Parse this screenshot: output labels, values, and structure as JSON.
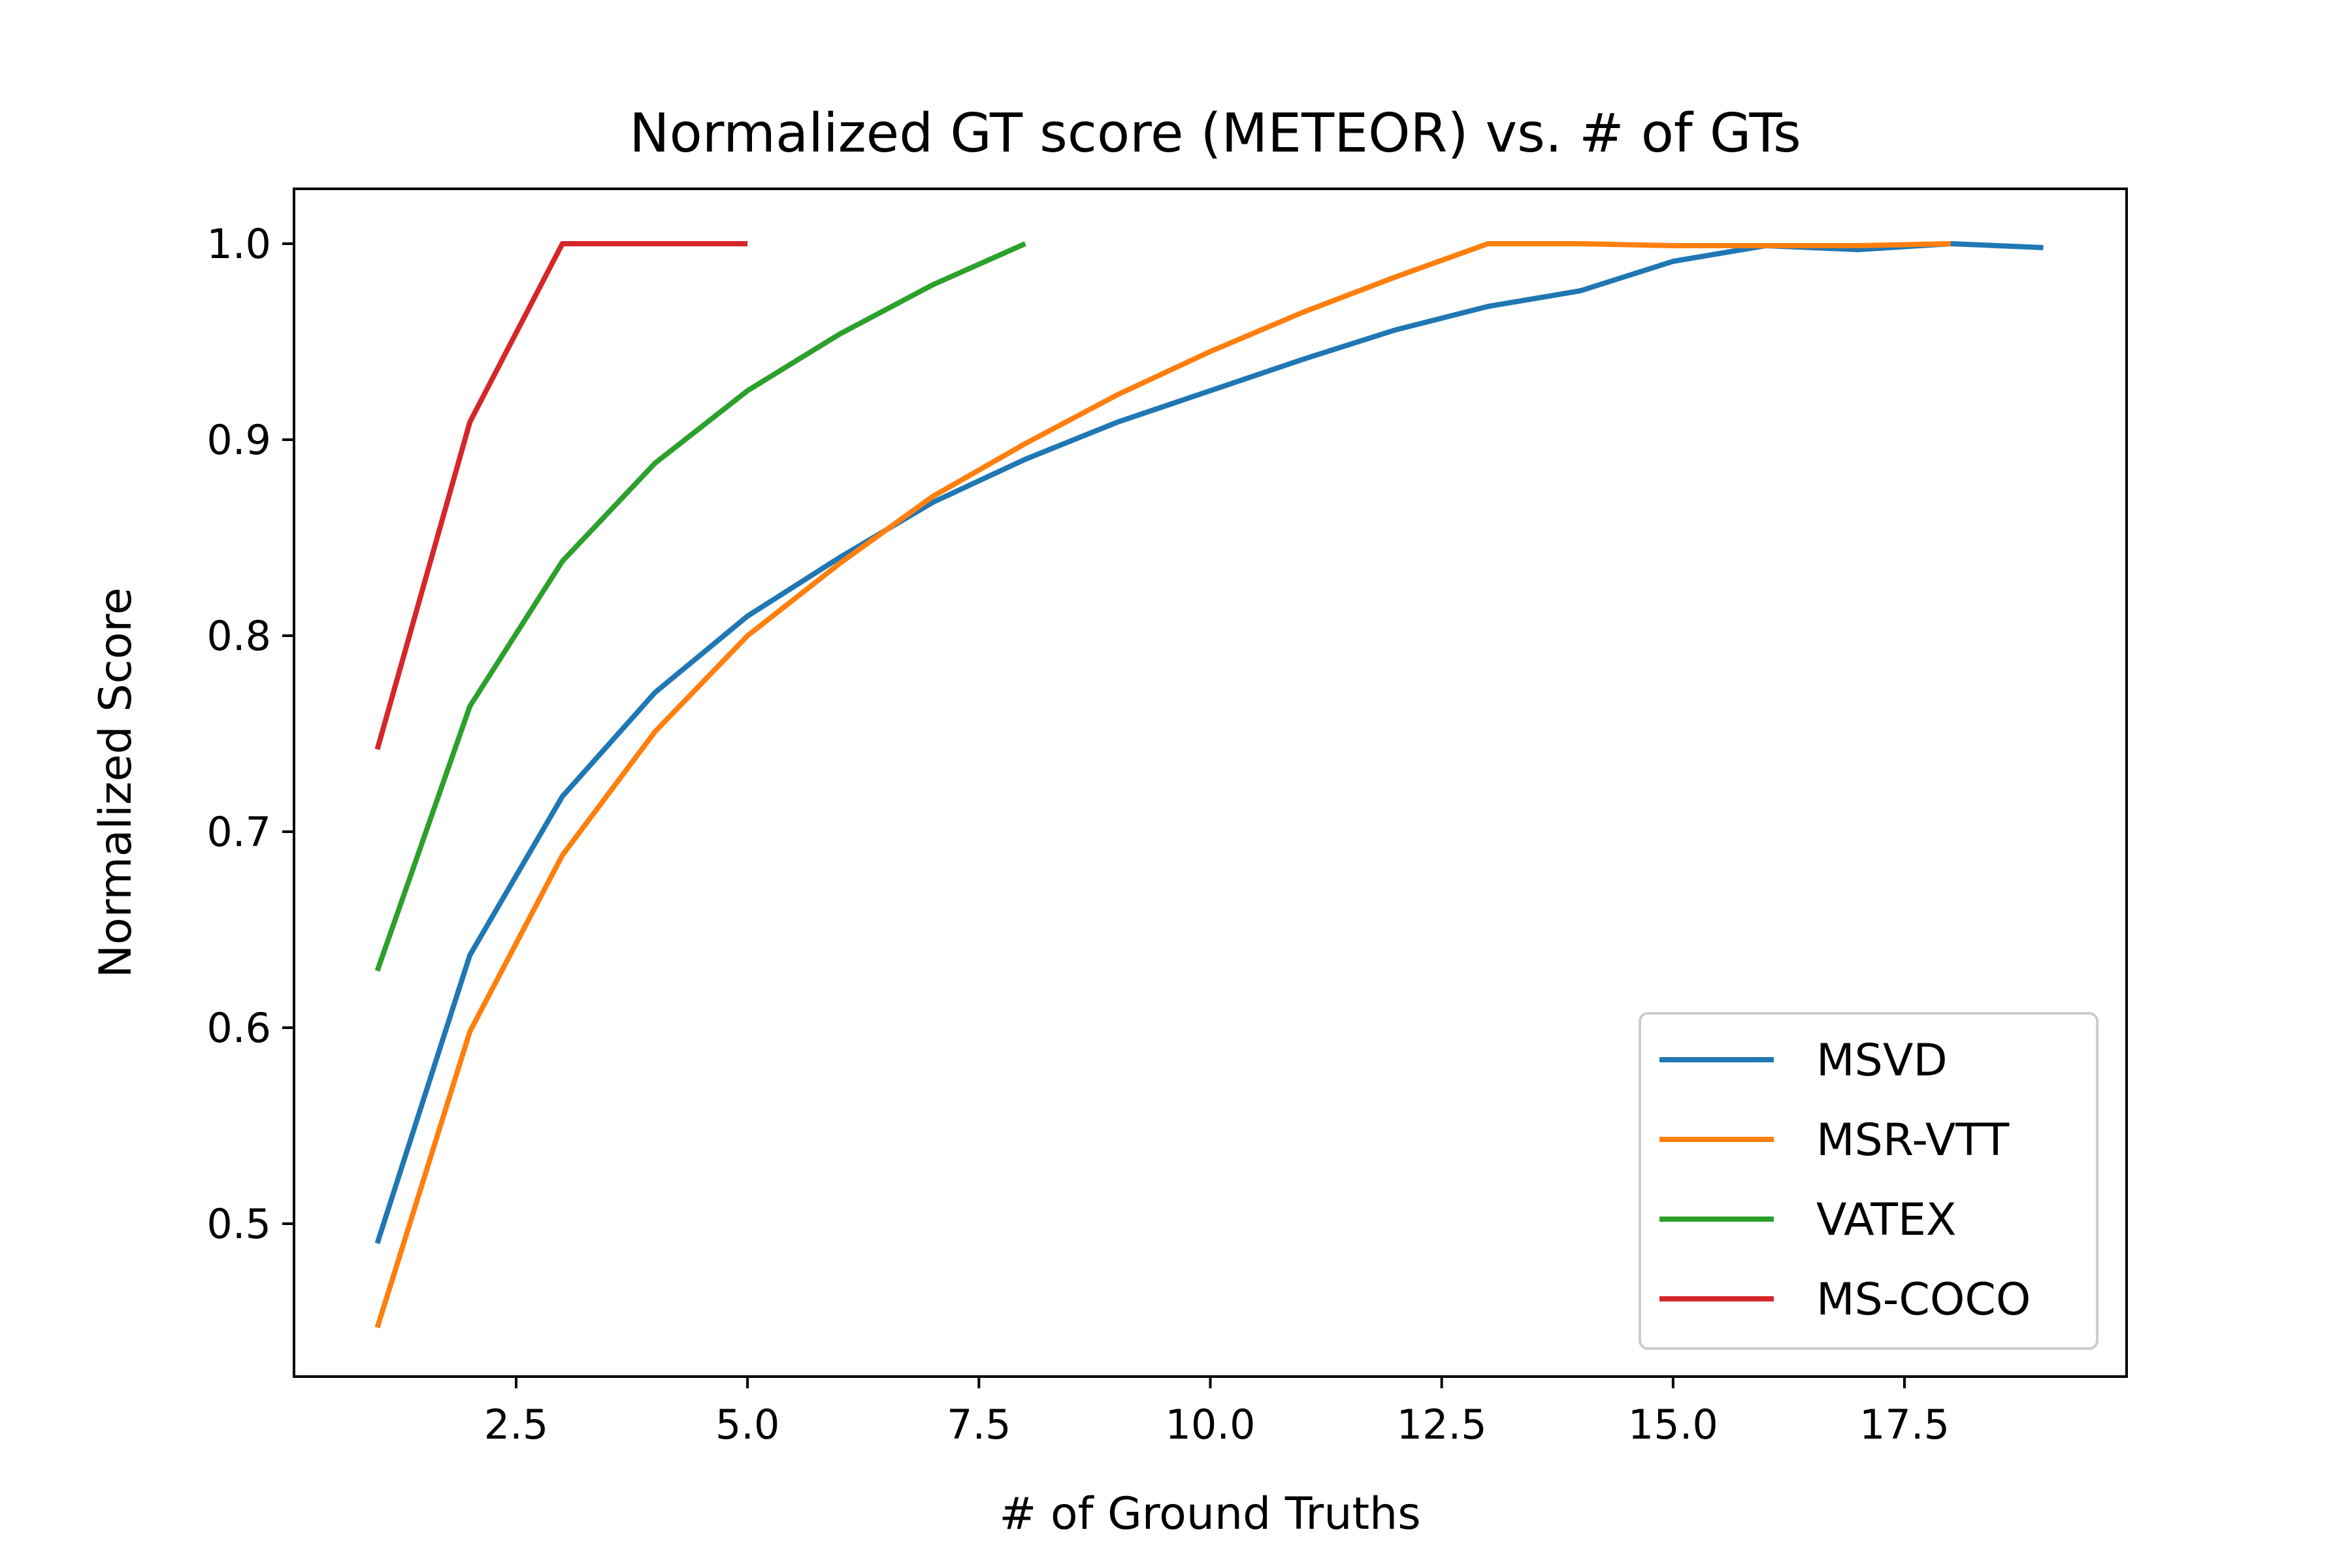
{
  "chart_data": {
    "type": "line",
    "title": "Normalized GT score (METEOR) vs. # of GTs",
    "xlabel": "# of Ground Truths",
    "ylabel": "Normalized Score",
    "xlim": [
      0.1,
      19.9
    ],
    "ylim": [
      0.422,
      1.028
    ],
    "xticks": [
      2.5,
      5.0,
      7.5,
      10.0,
      12.5,
      15.0,
      17.5
    ],
    "xtick_labels": [
      "2.5",
      "5.0",
      "7.5",
      "10.0",
      "12.5",
      "15.0",
      "17.5"
    ],
    "yticks": [
      0.5,
      0.6,
      0.7,
      0.8,
      0.9,
      1.0
    ],
    "ytick_labels": [
      "0.5",
      "0.6",
      "0.7",
      "0.8",
      "0.9",
      "1.0"
    ],
    "grid": false,
    "legend_position": "lower-right",
    "series": [
      {
        "name": "MSVD",
        "color": "#1f77b4",
        "x": [
          1,
          2,
          3,
          4,
          5,
          6,
          7,
          8,
          9,
          10,
          11,
          12,
          13,
          14,
          15,
          16,
          17,
          18,
          19
        ],
        "y": [
          0.49,
          0.637,
          0.718,
          0.771,
          0.81,
          0.84,
          0.868,
          0.89,
          0.909,
          0.925,
          0.941,
          0.956,
          0.968,
          0.976,
          0.991,
          0.999,
          0.997,
          1.0,
          0.998
        ]
      },
      {
        "name": "MSR-VTT",
        "color": "#ff7f0e",
        "x": [
          1,
          2,
          3,
          4,
          5,
          6,
          7,
          8,
          9,
          10,
          11,
          12,
          13,
          14,
          15,
          16,
          17,
          18
        ],
        "y": [
          0.447,
          0.598,
          0.688,
          0.751,
          0.8,
          0.837,
          0.871,
          0.898,
          0.923,
          0.945,
          0.965,
          0.983,
          1.0,
          1.0,
          0.999,
          0.999,
          0.999,
          1.0
        ]
      },
      {
        "name": "VATEX",
        "color": "#2ca02c",
        "x": [
          1,
          2,
          3,
          4,
          5,
          6,
          7,
          8
        ],
        "y": [
          0.629,
          0.764,
          0.838,
          0.888,
          0.925,
          0.954,
          0.979,
          1.0
        ]
      },
      {
        "name": "MS-COCO",
        "color": "#d62728",
        "x": [
          1,
          2,
          3,
          4,
          5
        ],
        "y": [
          0.742,
          0.909,
          1.0,
          1.0,
          1.0
        ]
      }
    ]
  }
}
